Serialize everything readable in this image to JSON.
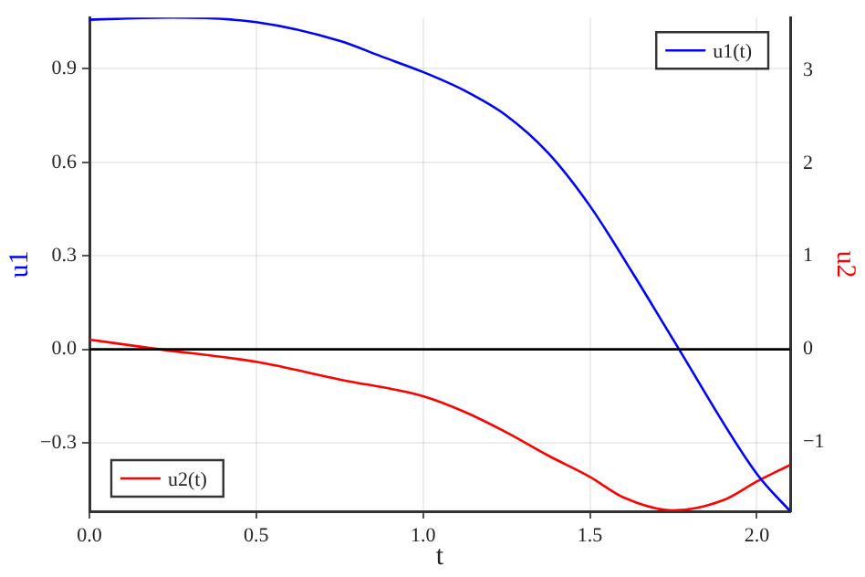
{
  "chart_data": {
    "type": "line",
    "xlabel": "t",
    "ylabel": "u1",
    "y2label": "u2",
    "xlim": [
      0,
      2.1
    ],
    "xticks": [
      {
        "value": 0,
        "label": "0.0"
      },
      0.5,
      {
        "value": 1,
        "label": "1.0"
      },
      1.5,
      {
        "value": 2,
        "label": "2.0"
      }
    ],
    "ylim": [
      -0.52,
      1.065
    ],
    "yticks": [
      {
        "value": -0.3,
        "label": "−0.3"
      },
      {
        "value": 0,
        "label": "0.0"
      },
      0.3,
      0.6,
      0.9
    ],
    "y2lim": [
      -1.75,
      3.57
    ],
    "y2ticks": [
      {
        "value": -1,
        "label": "−1"
      },
      0,
      1,
      2,
      3
    ],
    "grid": true,
    "legend": "bottom left",
    "ref_lines": [
      {
        "axis": "y",
        "value": 0,
        "color": "#000000"
      }
    ],
    "series": [
      {
        "name": "u1(t)",
        "color": "#0000ff",
        "x": [
          0,
          0.25,
          0.5,
          0.75,
          0.875,
          1.0,
          1.125,
          1.25,
          1.375,
          1.5,
          1.625,
          1.75,
          2.0,
          2.1
        ],
        "values": [
          1.058,
          1.065,
          1.05,
          0.99,
          0.94,
          0.89,
          0.83,
          0.75,
          0.63,
          0.46,
          0.25,
          0.03,
          -0.4,
          -0.52
        ]
      },
      {
        "name": "u2(t)",
        "color": "#ff0000",
        "axis": "y2",
        "x": [
          0,
          0.2,
          0.5,
          0.75,
          1.0,
          1.125,
          1.25,
          1.375,
          1.5,
          1.6,
          1.75,
          1.9,
          2.0,
          2.1
        ],
        "values": [
          0.1,
          0,
          -0.14,
          -0.33,
          -0.51,
          -0.68,
          -0.9,
          -1.15,
          -1.38,
          -1.6,
          -1.74,
          -1.63,
          -1.43,
          -1.25
        ]
      }
    ]
  }
}
